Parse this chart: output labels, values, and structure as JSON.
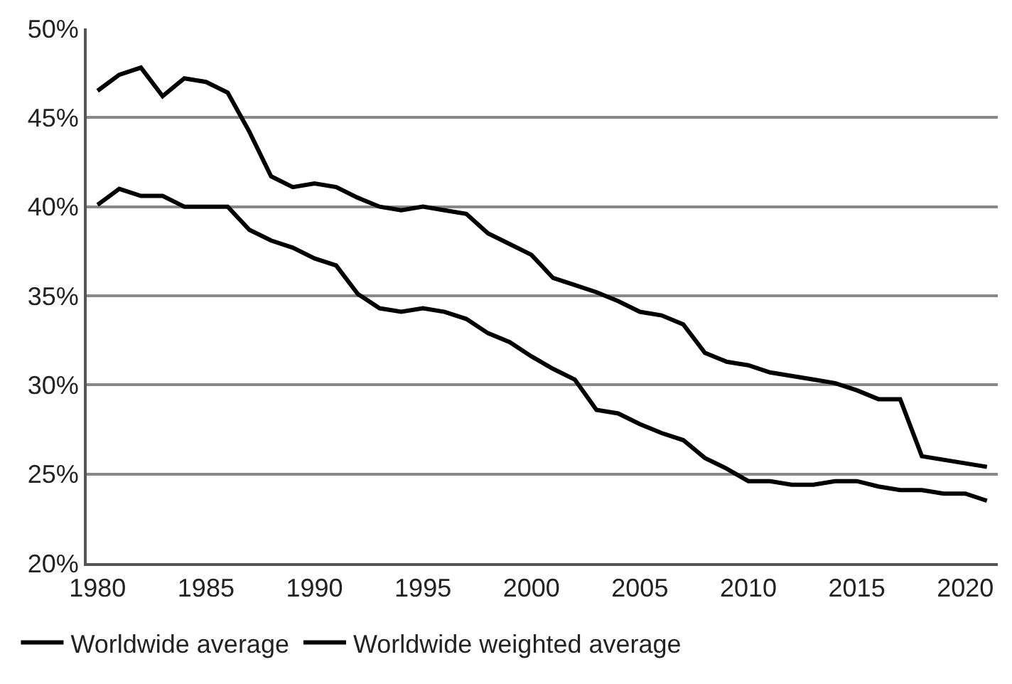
{
  "chart_data": {
    "type": "line",
    "x": [
      1980,
      1981,
      1982,
      1983,
      1984,
      1985,
      1986,
      1987,
      1988,
      1989,
      1990,
      1991,
      1992,
      1993,
      1994,
      1995,
      1996,
      1997,
      1998,
      1999,
      2000,
      2001,
      2002,
      2003,
      2004,
      2005,
      2006,
      2007,
      2008,
      2009,
      2010,
      2011,
      2012,
      2013,
      2014,
      2015,
      2016,
      2017,
      2018,
      2019,
      2020,
      2021
    ],
    "series": [
      {
        "name": "Worldwide average",
        "color": "#000000",
        "values": [
          40.1,
          41.0,
          40.6,
          40.6,
          40.0,
          40.0,
          40.0,
          38.7,
          38.1,
          37.7,
          37.1,
          36.7,
          35.1,
          34.3,
          34.1,
          34.3,
          34.1,
          33.7,
          32.9,
          32.4,
          31.6,
          30.9,
          30.3,
          28.6,
          28.4,
          27.8,
          27.3,
          26.9,
          25.9,
          25.3,
          24.6,
          24.6,
          24.4,
          24.4,
          24.6,
          24.6,
          24.3,
          24.1,
          24.1,
          23.9,
          23.9,
          23.5
        ]
      },
      {
        "name": "Worldwide weighted average",
        "color": "#000000",
        "values": [
          46.5,
          47.4,
          47.8,
          46.2,
          47.2,
          47.0,
          46.4,
          44.2,
          41.7,
          41.1,
          41.3,
          41.1,
          40.5,
          40.0,
          39.8,
          40.0,
          39.8,
          39.6,
          38.5,
          37.9,
          37.3,
          36.0,
          35.6,
          35.2,
          34.7,
          34.1,
          33.9,
          33.4,
          31.8,
          31.3,
          31.1,
          30.7,
          30.5,
          30.3,
          30.1,
          29.7,
          29.2,
          29.2,
          26.0,
          25.8,
          25.6,
          25.4
        ]
      }
    ],
    "xlim": [
      1979.5,
      2021.5
    ],
    "xticks": [
      1980,
      1985,
      1990,
      1995,
      2000,
      2005,
      2010,
      2015,
      2020
    ],
    "ylim": [
      20,
      50
    ],
    "yticks": [
      {
        "value": 20,
        "label": "20%"
      },
      {
        "value": 25,
        "label": "25%"
      },
      {
        "value": 30,
        "label": "30%"
      },
      {
        "value": 35,
        "label": "35%"
      },
      {
        "value": 40,
        "label": "40%"
      },
      {
        "value": 45,
        "label": "45%"
      },
      {
        "value": 50,
        "label": "50%"
      }
    ],
    "grid": "y",
    "legend": "bottom left",
    "marker": "none",
    "line_style": "solid"
  }
}
